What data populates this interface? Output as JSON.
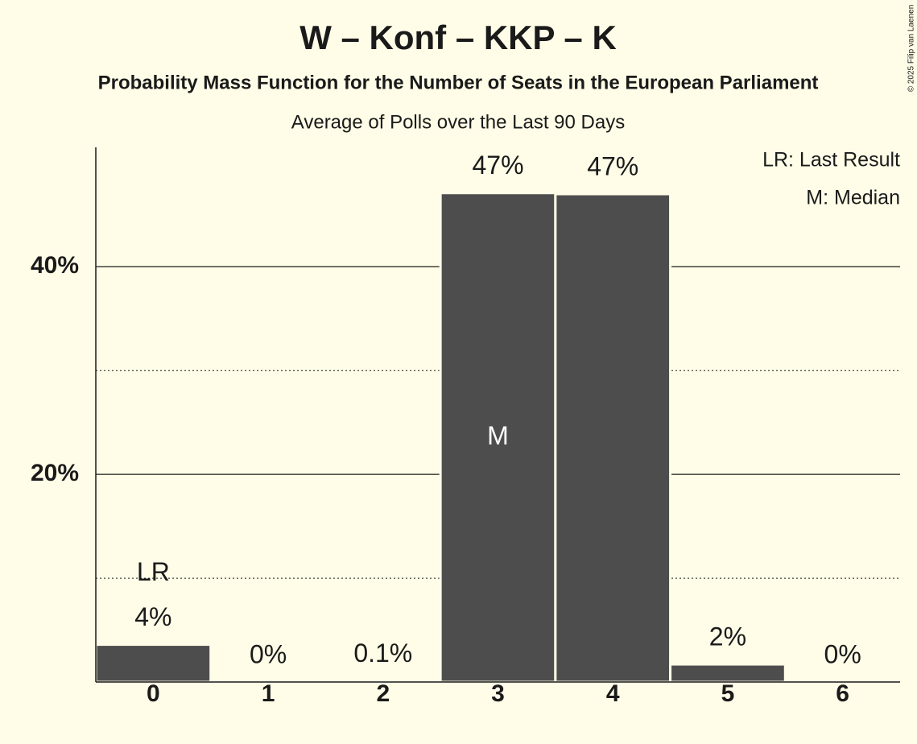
{
  "chart_data": {
    "type": "bar",
    "title": "W – Konf – KKP – K",
    "subtitle": "Probability Mass Function for the Number of Seats in the European Parliament",
    "subtitle2": "Average of Polls over the Last 90 Days",
    "categories": [
      "0",
      "1",
      "2",
      "3",
      "4",
      "5",
      "6"
    ],
    "values": [
      3.6,
      0,
      0.1,
      47.1,
      47.0,
      1.7,
      0
    ],
    "value_labels": [
      "4%",
      "0%",
      "0.1%",
      "47%",
      "47%",
      "2%",
      "0%"
    ],
    "color": "#4d4d4d",
    "ylim": [
      0,
      51.5
    ],
    "yticks": [
      {
        "value": 20,
        "label": "20%"
      },
      {
        "value": 40,
        "label": "40%"
      }
    ],
    "minor_yticks": [
      10,
      30
    ],
    "grid": true,
    "last_result": {
      "index": 0,
      "label": "LR"
    },
    "median": {
      "index": 3,
      "label": "M"
    },
    "legend": [
      "LR: Last Result",
      "M: Median"
    ],
    "copyright": "© 2025 Filip van Laenen"
  }
}
